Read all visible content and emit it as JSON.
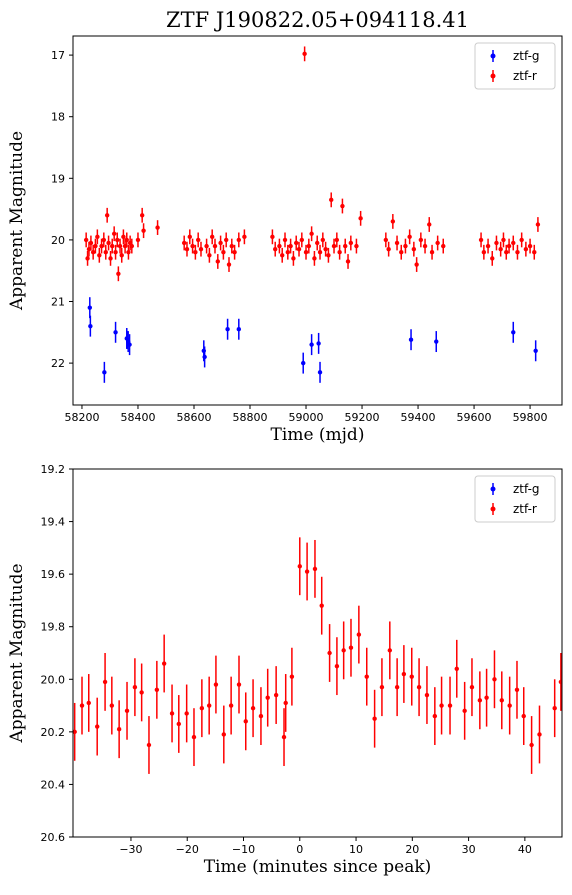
{
  "chart_data": [
    {
      "type": "errorbar",
      "title": "ZTF J190822.05+094118.41",
      "xlabel": "Time (mjd)",
      "ylabel": "Apparent Magnitude",
      "xlim": [
        58168,
        59914
      ],
      "xticks": [
        58200,
        58400,
        58600,
        58800,
        59000,
        59200,
        59400,
        59600,
        59800
      ],
      "ylim": [
        22.68,
        16.69
      ],
      "yticks": [
        17,
        18,
        19,
        20,
        21,
        22
      ],
      "legend": "upper right",
      "series": [
        {
          "name": "ztf-g",
          "color": "#0000ff",
          "error": 0.17,
          "x": [
            58228,
            58230,
            58280,
            58320,
            58360,
            58365,
            58370,
            58635,
            58638,
            58720,
            58760,
            58990,
            59020,
            59045,
            59050,
            59375,
            59465,
            59740,
            59820
          ],
          "values": [
            21.1,
            21.4,
            22.15,
            21.5,
            21.6,
            21.65,
            21.7,
            21.8,
            21.9,
            21.45,
            21.45,
            22.0,
            21.7,
            21.68,
            22.15,
            21.62,
            21.65,
            21.5,
            21.8
          ]
        },
        {
          "name": "ztf-r",
          "color": "#ff0000",
          "error": 0.12,
          "x": [
            58215,
            58220,
            58225,
            58232,
            58240,
            58248,
            58255,
            58262,
            58270,
            58278,
            58285,
            58290,
            58295,
            58302,
            58308,
            58315,
            58320,
            58326,
            58330,
            58336,
            58342,
            58348,
            58354,
            58360,
            58366,
            58372,
            58378,
            58400,
            58415,
            58420,
            58470,
            58565,
            58575,
            58585,
            58595,
            58605,
            58615,
            58625,
            58645,
            58655,
            58665,
            58675,
            58685,
            58695,
            58705,
            58715,
            58725,
            58735,
            58745,
            58760,
            58780,
            58880,
            58890,
            58905,
            58915,
            58925,
            58935,
            58945,
            58955,
            58965,
            58975,
            58985,
            58995,
            59000,
            59010,
            59020,
            59030,
            59040,
            59050,
            59060,
            59070,
            59080,
            59090,
            59100,
            59110,
            59120,
            59130,
            59140,
            59150,
            59160,
            59180,
            59195,
            59285,
            59295,
            59310,
            59325,
            59340,
            59355,
            59370,
            59385,
            59395,
            59410,
            59425,
            59440,
            59450,
            59470,
            59490,
            59625,
            59635,
            59650,
            59665,
            59680,
            59695,
            59705,
            59715,
            59725,
            59740,
            59755,
            59770,
            59785,
            59800,
            59815,
            59828
          ],
          "values": [
            20.0,
            20.3,
            20.15,
            20.05,
            20.2,
            20.1,
            19.95,
            20.25,
            20.1,
            20.0,
            20.2,
            19.6,
            20.05,
            20.3,
            20.1,
            19.9,
            20.2,
            20.0,
            20.55,
            20.1,
            20.25,
            19.95,
            20.1,
            20.0,
            20.2,
            20.05,
            20.1,
            20.0,
            19.6,
            19.85,
            19.8,
            20.05,
            20.15,
            19.95,
            20.1,
            20.2,
            20.0,
            20.15,
            20.1,
            20.25,
            19.95,
            20.1,
            20.35,
            20.05,
            20.2,
            20.0,
            20.4,
            20.1,
            20.2,
            20.0,
            19.95,
            19.95,
            20.15,
            20.1,
            20.25,
            20.0,
            20.2,
            20.1,
            20.3,
            20.05,
            20.15,
            20.0,
            16.98,
            20.2,
            20.1,
            19.9,
            20.3,
            20.05,
            20.2,
            20.0,
            20.15,
            20.25,
            19.35,
            20.1,
            20.0,
            20.2,
            19.45,
            20.1,
            20.35,
            20.05,
            20.1,
            19.65,
            20.0,
            20.15,
            19.7,
            20.05,
            20.2,
            20.1,
            19.95,
            20.15,
            20.4,
            20.0,
            20.1,
            19.75,
            20.2,
            20.05,
            20.1,
            20.0,
            20.2,
            20.1,
            20.3,
            20.05,
            20.15,
            20.0,
            20.2,
            20.1,
            20.05,
            20.2,
            20.0,
            20.15,
            20.1,
            20.2,
            19.75
          ]
        }
      ]
    },
    {
      "type": "errorbar",
      "xlabel": "Time (minutes since peak)",
      "ylabel": "Apparent Magnitude",
      "xlim": [
        -40.3,
        46.6
      ],
      "xticks": [
        {
          "value": -30,
          "label": "−30"
        },
        {
          "value": -20,
          "label": "−20"
        },
        {
          "value": -10,
          "label": "−10"
        },
        0,
        10,
        20,
        30,
        40
      ],
      "ylim": [
        20.6,
        19.2
      ],
      "yticks": [
        19.2,
        19.4,
        19.6,
        19.8,
        {
          "value": 20,
          "label": "20.0"
        },
        20.2,
        20.4,
        20.6
      ],
      "legend": "upper right",
      "series": [
        {
          "name": "ztf-g",
          "color": "#0000ff",
          "error": 0.1,
          "x": [],
          "values": []
        },
        {
          "name": "ztf-r",
          "color": "#ff0000",
          "error": 0.11,
          "x": [
            -40,
            -38.7,
            -37.5,
            -36,
            -34.6,
            -33.4,
            -32.1,
            -30.7,
            -29.3,
            -28.1,
            -26.8,
            -25.4,
            -24.1,
            -22.7,
            -21.5,
            -20.1,
            -18.8,
            -17.4,
            -16.1,
            -14.9,
            -13.5,
            -12.2,
            -10.8,
            -9.6,
            -8.3,
            -6.9,
            -5.7,
            -4.2,
            -2.8,
            -2.5,
            -1.4,
            0,
            1.3,
            2.7,
            3.9,
            5.3,
            6.6,
            7.8,
            9.1,
            10.5,
            11.9,
            13.3,
            14.6,
            16,
            17.3,
            18.5,
            19.9,
            21.2,
            22.6,
            24,
            25.2,
            26.7,
            27.9,
            29.3,
            30.6,
            32,
            33.2,
            34.6,
            35.9,
            37.3,
            38.6,
            39.8,
            41.2,
            42.6,
            45.3,
            46.4
          ],
          "values": [
            20.2,
            20.1,
            20.09,
            20.18,
            20.01,
            20.1,
            20.19,
            20.12,
            20.03,
            20.05,
            20.25,
            20.04,
            19.94,
            20.13,
            20.17,
            20.13,
            20.22,
            20.11,
            20.1,
            20.02,
            20.21,
            20.1,
            20.02,
            20.16,
            20.11,
            20.14,
            20.07,
            20.06,
            20.22,
            20.09,
            19.99,
            19.57,
            19.59,
            19.58,
            19.72,
            19.9,
            19.95,
            19.89,
            19.88,
            19.83,
            19.99,
            20.15,
            20.03,
            19.89,
            20.03,
            19.98,
            19.99,
            20.03,
            20.06,
            20.14,
            20.1,
            20.1,
            19.96,
            20.12,
            20.03,
            20.08,
            20.07,
            20.0,
            20.08,
            20.1,
            20.04,
            20.14,
            20.25,
            20.21,
            20.11,
            20.01
          ]
        }
      ]
    }
  ]
}
